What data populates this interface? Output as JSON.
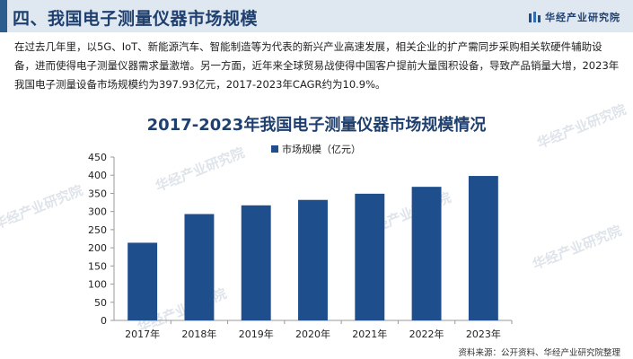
{
  "header": {
    "section_title": "四、我国电子测量仪器市场规模",
    "brand_name": "华经产业研究院"
  },
  "intro_text": "在过去几年里，以5G、IoT、新能源汽车、智能制造等为代表的新兴产业高速发展，相关企业的扩产需同步采购相关软硬件辅助设备，进而使得电子测量仪器需求量激增。另一方面，近年来全球贸易战使得中国客户提前大量囤积设备，导致产品销量大增，2023年我国电子测量设备市场规模约为397.93亿元，2017-2023年CAGR约为10.9%。",
  "watermark_text": "华经产业研究院",
  "source_text": "资料来源：公开资料、华经产业研究院整理",
  "colors": {
    "bar": "#1f4e8c",
    "title": "#1f3f6e",
    "axis": "#999999"
  },
  "chart_data": {
    "type": "bar",
    "title": "2017-2023年我国电子测量仪器市场规模情况",
    "categories": [
      "2017年",
      "2018年",
      "2019年",
      "2020年",
      "2021年",
      "2022年",
      "2023年"
    ],
    "series": [
      {
        "name": "市场规模（亿元）",
        "values": [
          214,
          293,
          317,
          332,
          349,
          368,
          397.93
        ]
      }
    ],
    "ylim": [
      0,
      450
    ],
    "yticks": [
      0,
      50,
      100,
      150,
      200,
      250,
      300,
      350,
      400,
      450
    ],
    "grid": false,
    "legend_position": "top-center"
  }
}
